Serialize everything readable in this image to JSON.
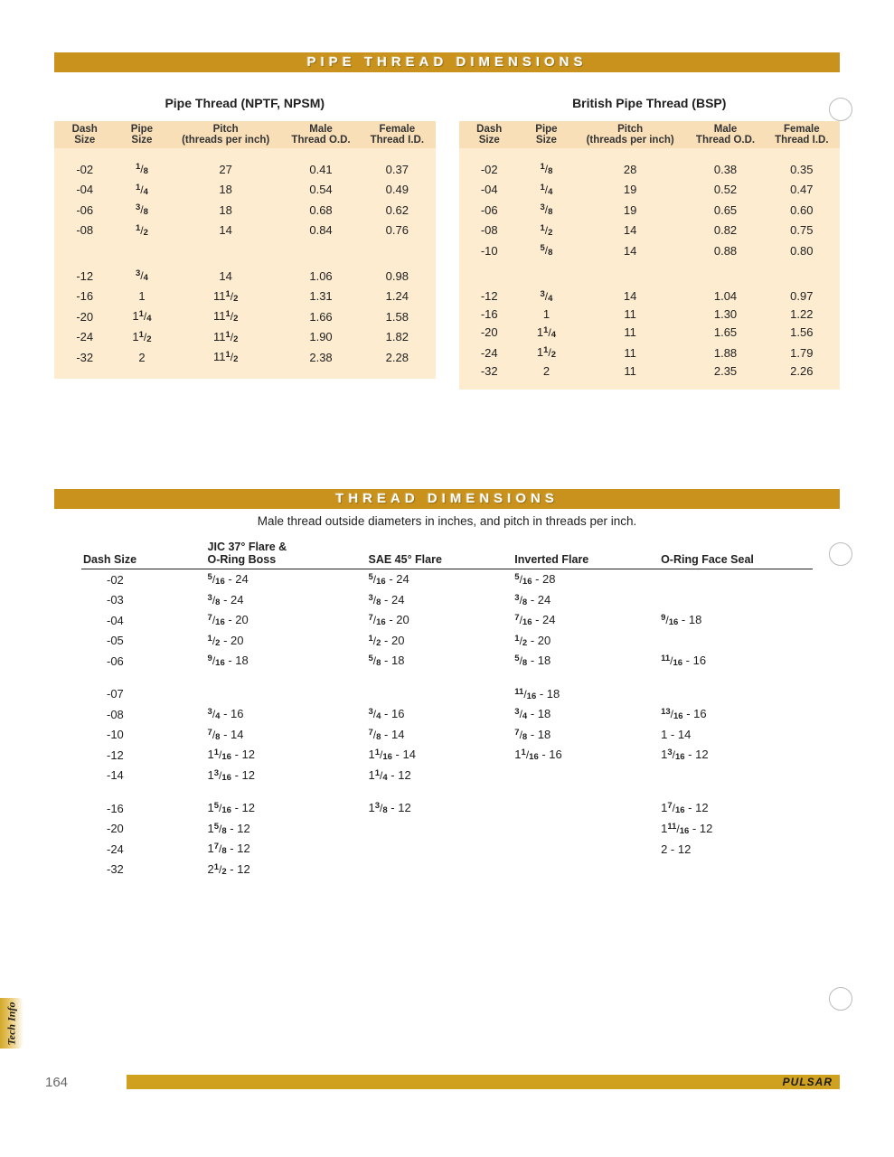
{
  "banner1": "PIPE THREAD DIMENSIONS",
  "banner2": "THREAD DIMENSIONS",
  "tableA": {
    "title": "Pipe Thread (NPTF, NPSM)",
    "headers": {
      "dash": "Dash Size",
      "pipe": "Pipe Size",
      "pitch": "Pitch (threads per inch)",
      "male": "Male Thread O.D.",
      "female": "Female Thread I.D."
    },
    "groups": [
      [
        {
          "dash": "-02",
          "pipe": {
            "w": "",
            "n": "1",
            "d": "8"
          },
          "pitch": "27",
          "male": "0.41",
          "female": "0.37"
        },
        {
          "dash": "-04",
          "pipe": {
            "w": "",
            "n": "1",
            "d": "4"
          },
          "pitch": "18",
          "male": "0.54",
          "female": "0.49"
        },
        {
          "dash": "-06",
          "pipe": {
            "w": "",
            "n": "3",
            "d": "8"
          },
          "pitch": "18",
          "male": "0.68",
          "female": "0.62"
        },
        {
          "dash": "-08",
          "pipe": {
            "w": "",
            "n": "1",
            "d": "2"
          },
          "pitch": "14",
          "male": "0.84",
          "female": "0.76"
        }
      ],
      [
        {
          "dash": "-12",
          "pipe": {
            "w": "",
            "n": "3",
            "d": "4"
          },
          "pitch": "14",
          "male": "1.06",
          "female": "0.98"
        },
        {
          "dash": "-16",
          "pipe": {
            "w": "1"
          },
          "pitch": {
            "w": "11",
            "n": "1",
            "d": "2"
          },
          "male": "1.31",
          "female": "1.24"
        },
        {
          "dash": "-20",
          "pipe": {
            "w": "1",
            "n": "1",
            "d": "4"
          },
          "pitch": {
            "w": "11",
            "n": "1",
            "d": "2"
          },
          "male": "1.66",
          "female": "1.58"
        },
        {
          "dash": "-24",
          "pipe": {
            "w": "1",
            "n": "1",
            "d": "2"
          },
          "pitch": {
            "w": "11",
            "n": "1",
            "d": "2"
          },
          "male": "1.90",
          "female": "1.82"
        },
        {
          "dash": "-32",
          "pipe": {
            "w": "2"
          },
          "pitch": {
            "w": "11",
            "n": "1",
            "d": "2"
          },
          "male": "2.38",
          "female": "2.28"
        }
      ]
    ]
  },
  "tableB": {
    "title": "British Pipe Thread (BSP)",
    "headers": {
      "dash": "Dash Size",
      "pipe": "Pipe Size",
      "pitch": "Pitch (threads per inch)",
      "male": "Male Thread O.D.",
      "female": "Female Thread I.D."
    },
    "groups": [
      [
        {
          "dash": "-02",
          "pipe": {
            "w": "",
            "n": "1",
            "d": "8"
          },
          "pitch": "28",
          "male": "0.38",
          "female": "0.35"
        },
        {
          "dash": "-04",
          "pipe": {
            "w": "",
            "n": "1",
            "d": "4"
          },
          "pitch": "19",
          "male": "0.52",
          "female": "0.47"
        },
        {
          "dash": "-06",
          "pipe": {
            "w": "",
            "n": "3",
            "d": "8"
          },
          "pitch": "19",
          "male": "0.65",
          "female": "0.60"
        },
        {
          "dash": "-08",
          "pipe": {
            "w": "",
            "n": "1",
            "d": "2"
          },
          "pitch": "14",
          "male": "0.82",
          "female": "0.75"
        },
        {
          "dash": "-10",
          "pipe": {
            "w": "",
            "n": "5",
            "d": "8"
          },
          "pitch": "14",
          "male": "0.88",
          "female": "0.80"
        }
      ],
      [
        {
          "dash": "-12",
          "pipe": {
            "w": "",
            "n": "3",
            "d": "4"
          },
          "pitch": "14",
          "male": "1.04",
          "female": "0.97"
        },
        {
          "dash": "-16",
          "pipe": {
            "w": "1"
          },
          "pitch": "11",
          "male": "1.30",
          "female": "1.22"
        },
        {
          "dash": "-20",
          "pipe": {
            "w": "1",
            "n": "1",
            "d": "4"
          },
          "pitch": "11",
          "male": "1.65",
          "female": "1.56"
        },
        {
          "dash": "-24",
          "pipe": {
            "w": "1",
            "n": "1",
            "d": "2"
          },
          "pitch": "11",
          "male": "1.88",
          "female": "1.79"
        },
        {
          "dash": "-32",
          "pipe": {
            "w": "2"
          },
          "pitch": "11",
          "male": "2.35",
          "female": "2.26"
        }
      ]
    ]
  },
  "subtitle": "Male thread outside diameters in inches, and pitch in threads per inch.",
  "t2": {
    "headers": {
      "dash": "Dash Size",
      "jic": "JIC 37° Flare & O-Ring Boss",
      "sae": "SAE 45° Flare",
      "inv": "Inverted Flare",
      "oring": "O-Ring Face Seal"
    },
    "groups": [
      [
        {
          "dash": "-02",
          "jic": {
            "n": "5",
            "d": "16",
            "p": "24"
          },
          "sae": {
            "n": "5",
            "d": "16",
            "p": "24"
          },
          "inv": {
            "n": "5",
            "d": "16",
            "p": "28"
          },
          "oring": null
        },
        {
          "dash": "-03",
          "jic": {
            "n": "3",
            "d": "8",
            "p": "24"
          },
          "sae": {
            "n": "3",
            "d": "8",
            "p": "24"
          },
          "inv": {
            "n": "3",
            "d": "8",
            "p": "24"
          },
          "oring": null
        },
        {
          "dash": "-04",
          "jic": {
            "n": "7",
            "d": "16",
            "p": "20"
          },
          "sae": {
            "n": "7",
            "d": "16",
            "p": "20"
          },
          "inv": {
            "n": "7",
            "d": "16",
            "p": "24"
          },
          "oring": {
            "n": "9",
            "d": "16",
            "p": "18"
          }
        },
        {
          "dash": "-05",
          "jic": {
            "n": "1",
            "d": "2",
            "p": "20"
          },
          "sae": {
            "n": "1",
            "d": "2",
            "p": "20"
          },
          "inv": {
            "n": "1",
            "d": "2",
            "p": "20"
          },
          "oring": null
        },
        {
          "dash": "-06",
          "jic": {
            "n": "9",
            "d": "16",
            "p": "18"
          },
          "sae": {
            "n": "5",
            "d": "8",
            "p": "18"
          },
          "inv": {
            "n": "5",
            "d": "8",
            "p": "18"
          },
          "oring": {
            "n": "11",
            "d": "16",
            "p": "16"
          }
        }
      ],
      [
        {
          "dash": "-07",
          "jic": null,
          "sae": null,
          "inv": {
            "n": "11",
            "d": "16",
            "p": "18"
          },
          "oring": null
        },
        {
          "dash": "-08",
          "jic": {
            "n": "3",
            "d": "4",
            "p": "16"
          },
          "sae": {
            "n": "3",
            "d": "4",
            "p": "16"
          },
          "inv": {
            "n": "3",
            "d": "4",
            "p": "18"
          },
          "oring": {
            "n": "13",
            "d": "16",
            "p": "16"
          }
        },
        {
          "dash": "-10",
          "jic": {
            "n": "7",
            "d": "8",
            "p": "14"
          },
          "sae": {
            "n": "7",
            "d": "8",
            "p": "14"
          },
          "inv": {
            "n": "7",
            "d": "8",
            "p": "18"
          },
          "oring": {
            "w": "1",
            "p": "14"
          }
        },
        {
          "dash": "-12",
          "jic": {
            "w": "1",
            "n": "1",
            "d": "16",
            "p": "12"
          },
          "sae": {
            "w": "1",
            "n": "1",
            "d": "16",
            "p": "14"
          },
          "inv": {
            "w": "1",
            "n": "1",
            "d": "16",
            "p": "16"
          },
          "oring": {
            "w": "1",
            "n": "3",
            "d": "16",
            "p": "12"
          }
        },
        {
          "dash": "-14",
          "jic": {
            "w": "1",
            "n": "3",
            "d": "16",
            "p": "12"
          },
          "sae": {
            "w": "1",
            "n": "1",
            "d": "4",
            "p": "12"
          },
          "inv": null,
          "oring": null
        }
      ],
      [
        {
          "dash": "-16",
          "jic": {
            "w": "1",
            "n": "5",
            "d": "16",
            "p": "12"
          },
          "sae": {
            "w": "1",
            "n": "3",
            "d": "8",
            "p": "12"
          },
          "inv": null,
          "oring": {
            "w": "1",
            "n": "7",
            "d": "16",
            "p": "12"
          }
        },
        {
          "dash": "-20",
          "jic": {
            "w": "1",
            "n": "5",
            "d": "8",
            "p": "12"
          },
          "sae": null,
          "inv": null,
          "oring": {
            "w": "1",
            "n": "11",
            "d": "16",
            "p": "12"
          }
        },
        {
          "dash": "-24",
          "jic": {
            "w": "1",
            "n": "7",
            "d": "8",
            "p": "12"
          },
          "sae": null,
          "inv": null,
          "oring": {
            "w": "2",
            "p": "12"
          }
        },
        {
          "dash": "-32",
          "jic": {
            "w": "2",
            "n": "1",
            "d": "2",
            "p": "12"
          },
          "sae": null,
          "inv": null,
          "oring": null
        }
      ]
    ]
  },
  "sideTab": "Tech Info",
  "pageNumber": "164",
  "brand": "PULSAR",
  "colors": {
    "gold": "#c9921c",
    "peach_light": "#fdecd0",
    "peach_med": "#f8dfb7"
  },
  "col_widths_top": [
    "16%",
    "14%",
    "30%",
    "20%",
    "20%"
  ],
  "col_widths_t2": [
    "17%",
    "22%",
    "20%",
    "20%",
    "21%"
  ]
}
